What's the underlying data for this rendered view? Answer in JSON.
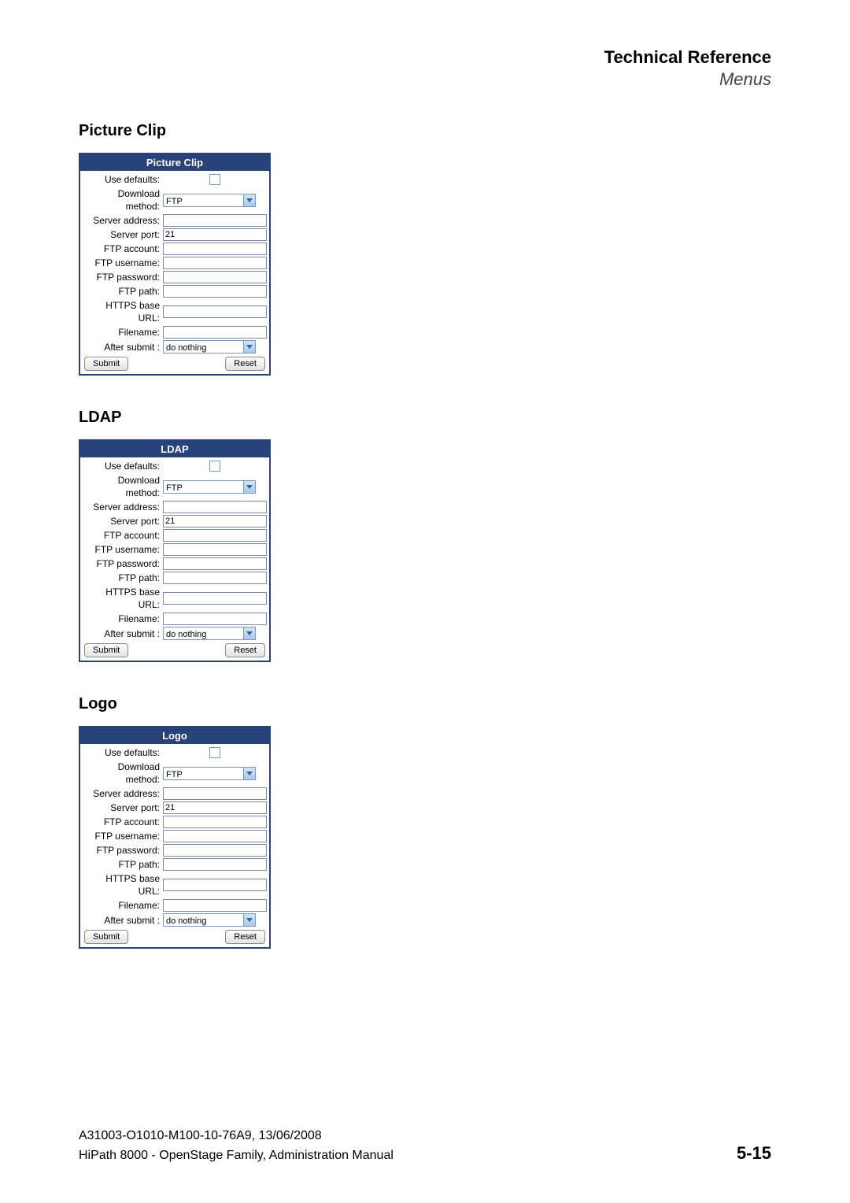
{
  "header": {
    "title": "Technical Reference",
    "subtitle": "Menus"
  },
  "colors": {
    "panel_header_bg": "#27437a",
    "panel_header_text": "#ffffff",
    "panel_border": "#27437a",
    "input_border": "#7a8aa8",
    "select_arrow_bg_top": "#cfe4fb",
    "select_arrow_bg_bottom": "#a9c9ef",
    "checkbox_border": "#6f9bd1"
  },
  "panels": [
    {
      "heading": "Picture Clip",
      "title": "Picture Clip",
      "use_defaults_label": "Use defaults:",
      "use_defaults_checked": false,
      "download_method_label": "Download method:",
      "download_method_value": "FTP",
      "server_address_label": "Server address:",
      "server_address_value": "",
      "server_port_label": "Server port:",
      "server_port_value": "21",
      "ftp_account_label": "FTP account:",
      "ftp_account_value": "",
      "ftp_username_label": "FTP username:",
      "ftp_username_value": "",
      "ftp_password_label": "FTP password:",
      "ftp_password_value": "",
      "ftp_path_label": "FTP path:",
      "ftp_path_value": "",
      "https_base_url_label": "HTTPS base URL:",
      "https_base_url_value": "",
      "filename_label": "Filename:",
      "filename_value": "",
      "after_submit_label": "After submit :",
      "after_submit_value": "do nothing",
      "submit_label": "Submit",
      "reset_label": "Reset"
    },
    {
      "heading": "LDAP",
      "title": "LDAP",
      "use_defaults_label": "Use defaults:",
      "use_defaults_checked": false,
      "download_method_label": "Download method:",
      "download_method_value": "FTP",
      "server_address_label": "Server address:",
      "server_address_value": "",
      "server_port_label": "Server port:",
      "server_port_value": "21",
      "ftp_account_label": "FTP account:",
      "ftp_account_value": "",
      "ftp_username_label": "FTP username:",
      "ftp_username_value": "",
      "ftp_password_label": "FTP password:",
      "ftp_password_value": "",
      "ftp_path_label": "FTP path:",
      "ftp_path_value": "",
      "https_base_url_label": "HTTPS base URL:",
      "https_base_url_value": "",
      "filename_label": "Filename:",
      "filename_value": "",
      "after_submit_label": "After submit :",
      "after_submit_value": "do nothing",
      "submit_label": "Submit",
      "reset_label": "Reset"
    },
    {
      "heading": "Logo",
      "title": "Logo",
      "use_defaults_label": "Use defaults:",
      "use_defaults_checked": false,
      "download_method_label": "Download method:",
      "download_method_value": "FTP",
      "server_address_label": "Server address:",
      "server_address_value": "",
      "server_port_label": "Server port:",
      "server_port_value": "21",
      "ftp_account_label": "FTP account:",
      "ftp_account_value": "",
      "ftp_username_label": "FTP username:",
      "ftp_username_value": "",
      "ftp_password_label": "FTP password:",
      "ftp_password_value": "",
      "ftp_path_label": "FTP path:",
      "ftp_path_value": "",
      "https_base_url_label": "HTTPS base URL:",
      "https_base_url_value": "",
      "filename_label": "Filename:",
      "filename_value": "",
      "after_submit_label": "After submit :",
      "after_submit_value": "do nothing",
      "submit_label": "Submit",
      "reset_label": "Reset"
    }
  ],
  "footer": {
    "line1": "A31003-O1010-M100-10-76A9, 13/06/2008",
    "line2": "HiPath 8000 - OpenStage Family, Administration Manual",
    "page": "5-15"
  }
}
